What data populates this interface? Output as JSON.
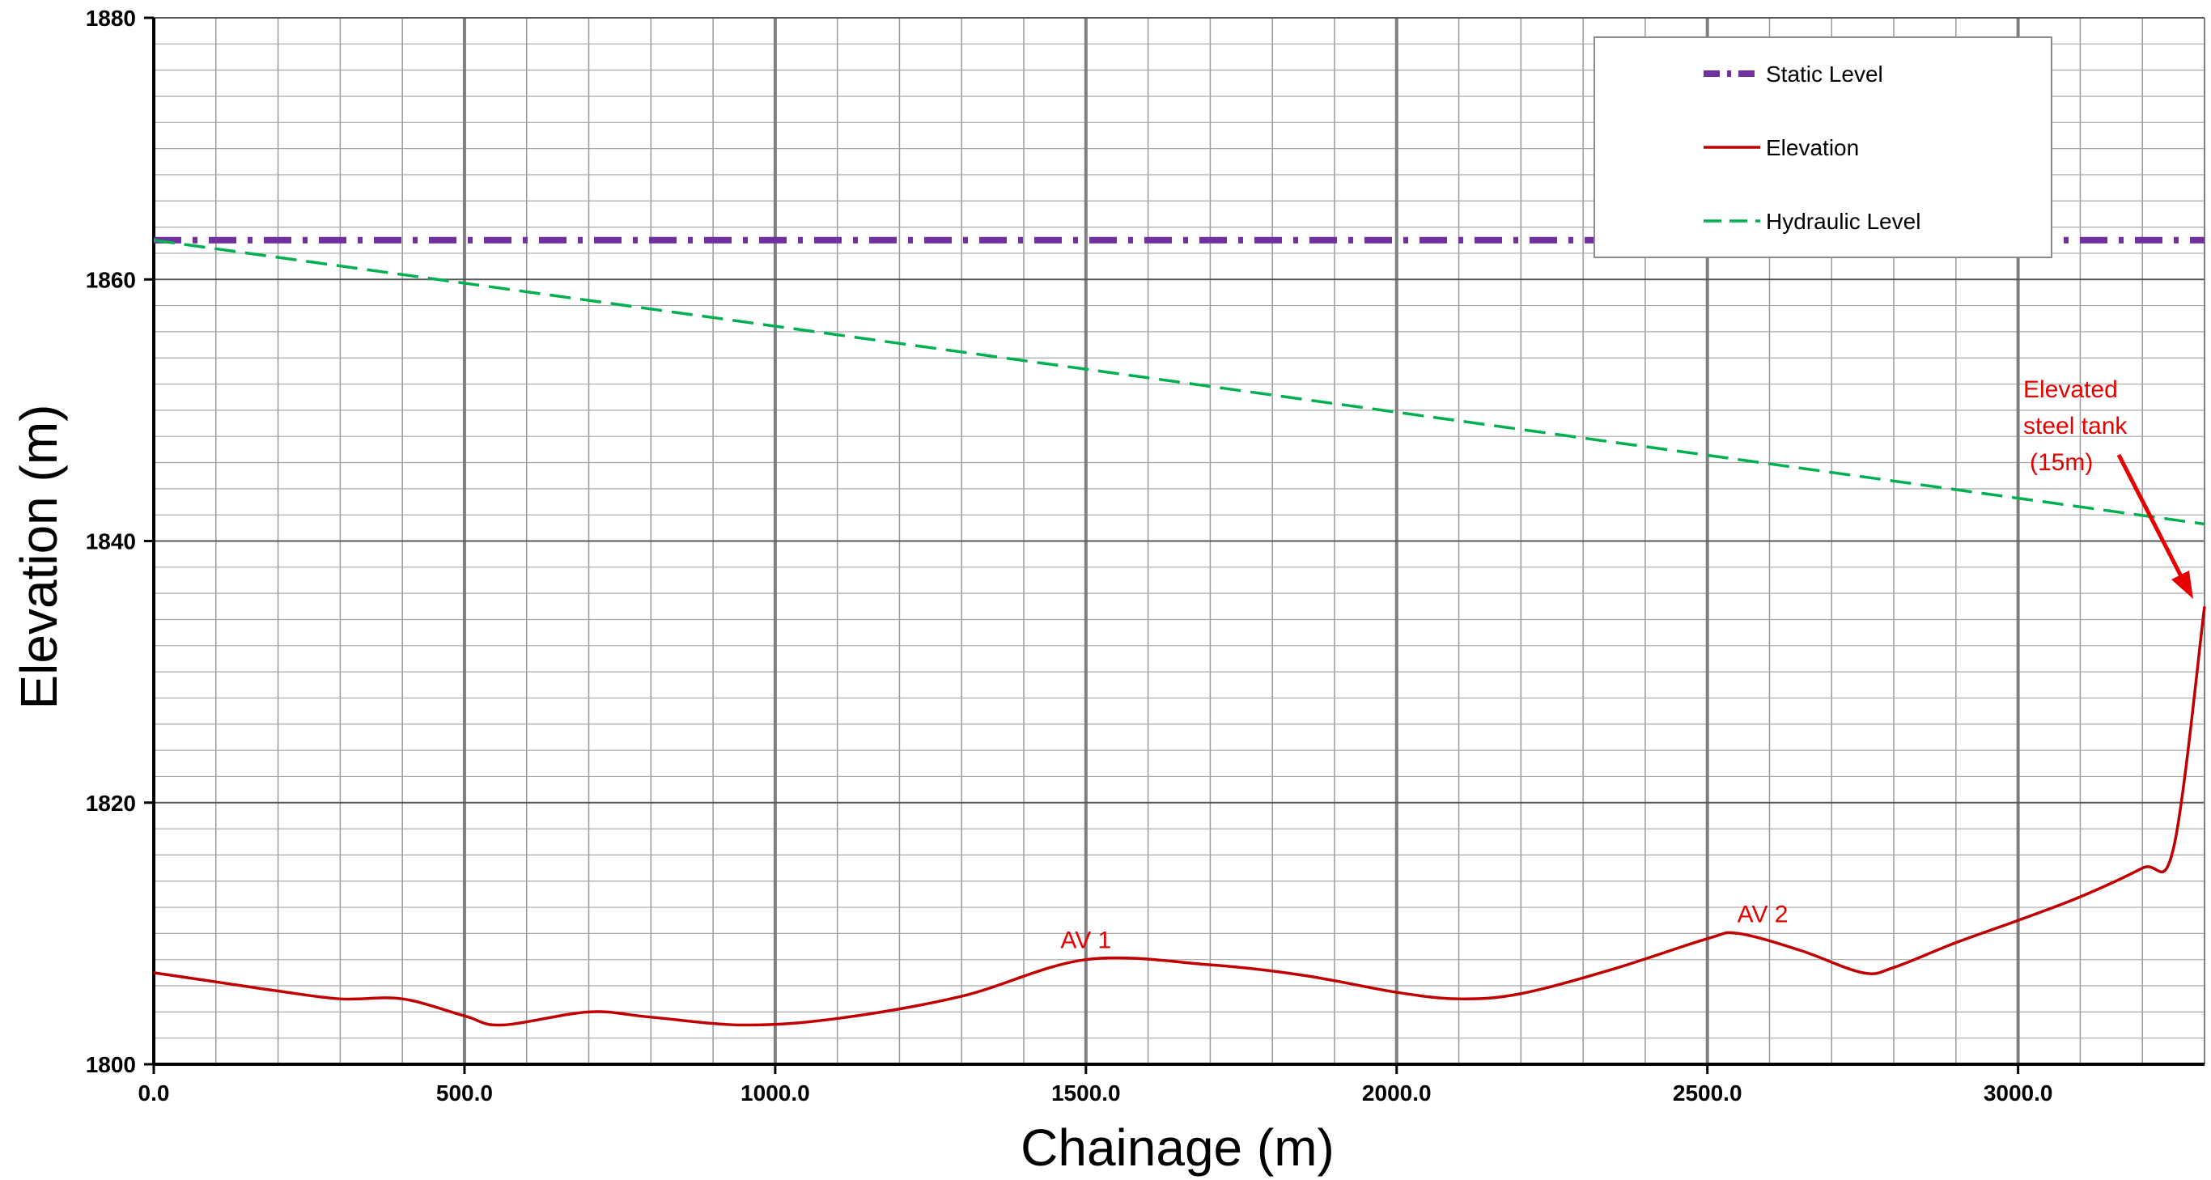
{
  "chart_data": {
    "type": "line",
    "xlabel": "Chainage (m)",
    "ylabel": "Elevation (m)",
    "xlim": [
      0,
      3300
    ],
    "ylim": [
      1800,
      1880
    ],
    "x_ticks": [
      0,
      500,
      1000,
      1500,
      2000,
      2500,
      3000
    ],
    "x_tick_labels": [
      "0.0",
      "500.0",
      "1000.0",
      "1500.0",
      "2000.0",
      "2500.0",
      "3000.0"
    ],
    "y_ticks": [
      1800,
      1820,
      1840,
      1860,
      1880
    ],
    "y_tick_labels": [
      "1800",
      "1820",
      "1840",
      "1860",
      "1880"
    ],
    "grid": true,
    "legend_position": "top-right",
    "series": [
      {
        "name": "Static Level",
        "color": "#7030a0",
        "style": "dash-dot",
        "x": [
          0,
          3300
        ],
        "y": [
          1863,
          1863
        ]
      },
      {
        "name": "Elevation",
        "color": "#c00000",
        "style": "solid",
        "x": [
          0,
          100,
          200,
          300,
          400,
          500,
          560,
          700,
          800,
          950,
          1100,
          1300,
          1500,
          1700,
          1850,
          2000,
          2100,
          2200,
          2350,
          2500,
          2550,
          2650,
          2750,
          2800,
          2900,
          3000,
          3100,
          3200,
          3250,
          3300
        ],
        "y": [
          1807,
          1806.3,
          1805.6,
          1805,
          1805,
          1803.7,
          1803,
          1804,
          1803.6,
          1803,
          1803.5,
          1805.2,
          1808,
          1807.6,
          1806.8,
          1805.5,
          1805,
          1805.4,
          1807.3,
          1809.6,
          1810,
          1808.7,
          1807,
          1807.4,
          1809.3,
          1811,
          1812.8,
          1815,
          1816.5,
          1835
        ]
      },
      {
        "name": "Hydraulic Level",
        "color": "#00b050",
        "style": "dashed",
        "x": [
          0,
          3300
        ],
        "y": [
          1863,
          1841.3
        ]
      }
    ],
    "annotations": [
      {
        "text": "AV 1",
        "x": 1500,
        "y": 1808
      },
      {
        "text": "AV 2",
        "x": 2550,
        "y": 1810
      },
      {
        "text": "Elevated steel tank (15m)",
        "lines": [
          "Elevated",
          "steel tank",
          "(15m)"
        ],
        "x": 3280,
        "y": 1835
      }
    ]
  }
}
